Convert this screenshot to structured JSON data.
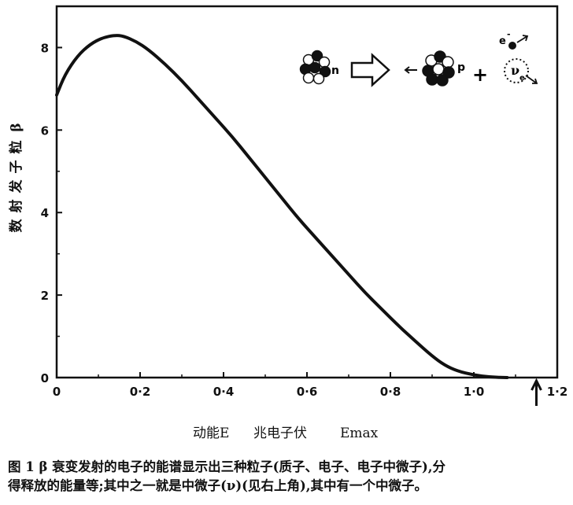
{
  "chart_data": {
    "type": "line",
    "title": "",
    "ylabel": "β 粒 子 发 射 数",
    "xlabel_parts": [
      "动能E",
      "兆电子伏",
      "Emax"
    ],
    "xlim": [
      0,
      1.2
    ],
    "ylim": [
      0,
      9
    ],
    "x_ticks": [
      0,
      0.2,
      0.4,
      0.6,
      0.8,
      1.0,
      1.2
    ],
    "x_tick_labels": [
      "0",
      "0·2",
      "0·4",
      "0·6",
      "0·8",
      "1·0",
      "1·2"
    ],
    "y_ticks": [
      0,
      2,
      4,
      6,
      8
    ],
    "y_tick_labels": [
      "0",
      "2",
      "4",
      "6",
      "8"
    ],
    "emax_marker_x": 1.15,
    "series": [
      {
        "x": [
          0,
          0.02,
          0.05,
          0.08,
          0.11,
          0.14,
          0.16,
          0.19,
          0.22,
          0.26,
          0.3,
          0.34,
          0.38,
          0.42,
          0.46,
          0.5,
          0.54,
          0.58,
          0.62,
          0.66,
          0.7,
          0.74,
          0.78,
          0.82,
          0.86,
          0.9,
          0.93,
          0.96,
          1.0,
          1.04,
          1.08
        ],
        "y": [
          6.85,
          7.35,
          7.8,
          8.08,
          8.24,
          8.3,
          8.28,
          8.15,
          7.95,
          7.6,
          7.2,
          6.75,
          6.3,
          5.85,
          5.35,
          4.85,
          4.35,
          3.85,
          3.4,
          2.95,
          2.5,
          2.05,
          1.65,
          1.25,
          0.88,
          0.52,
          0.3,
          0.16,
          0.06,
          0.01,
          0.0
        ]
      }
    ],
    "inset_labels": {
      "neutron": "n",
      "proton": "p",
      "plus": "+",
      "electron": "e",
      "electron_sign": "-",
      "neutrino": "ν",
      "neutrino_sub": "e"
    },
    "colors": {
      "curve": "#111111",
      "axis": "#111111",
      "dark_nucleon": "#111111",
      "light_nucleon": "#ffffff"
    }
  },
  "caption": {
    "line1": "图 1   β 衰变发射的电子的能谱显示出三种粒子(质子、电子、电子中微子),分",
    "line2": "得释放的能量等;其中之一就是中微子(ν)(见右上角),其中有一个中微子。"
  }
}
